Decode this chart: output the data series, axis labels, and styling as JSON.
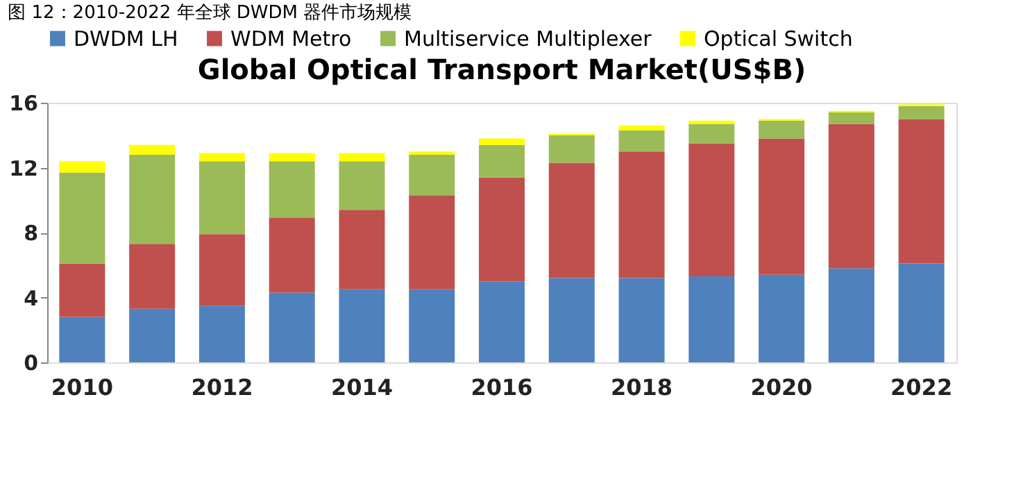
{
  "chart_data": {
    "type": "bar",
    "stacked": true,
    "title": "图 12：2010-2022 年全球 DWDM 器件市场规模",
    "subtitle": "Global Optical Transport Market(US$B)",
    "categories": [
      "2010",
      null,
      "2012",
      null,
      "2014",
      null,
      "2016",
      null,
      "2018",
      null,
      "2020",
      null,
      "2022"
    ],
    "series": [
      {
        "name": "DWDM LH",
        "color": "#4f81bd",
        "values": [
          2.8,
          3.3,
          3.5,
          4.3,
          4.5,
          4.5,
          5.0,
          5.2,
          5.2,
          5.3,
          5.4,
          5.8,
          6.1
        ]
      },
      {
        "name": "WDM Metro",
        "color": "#c0504d",
        "values": [
          3.3,
          4.0,
          4.4,
          4.6,
          4.9,
          5.8,
          6.4,
          7.1,
          7.8,
          8.2,
          8.4,
          8.9,
          8.9
        ]
      },
      {
        "name": "Multiservice Multiplexer",
        "color": "#9bbb59",
        "values": [
          5.6,
          5.5,
          4.5,
          3.5,
          3.0,
          2.5,
          2.0,
          1.7,
          1.3,
          1.2,
          1.1,
          0.7,
          0.8
        ]
      },
      {
        "name": "Optical Switch",
        "color": "#ffff00",
        "values": [
          0.7,
          0.6,
          0.5,
          0.5,
          0.5,
          0.2,
          0.4,
          0.1,
          0.3,
          0.2,
          0.1,
          0.1,
          0.1
        ]
      }
    ],
    "ylim": [
      0,
      16
    ],
    "yticks": [
      0,
      4,
      8,
      12,
      16
    ],
    "grid": false,
    "legend": "top"
  }
}
